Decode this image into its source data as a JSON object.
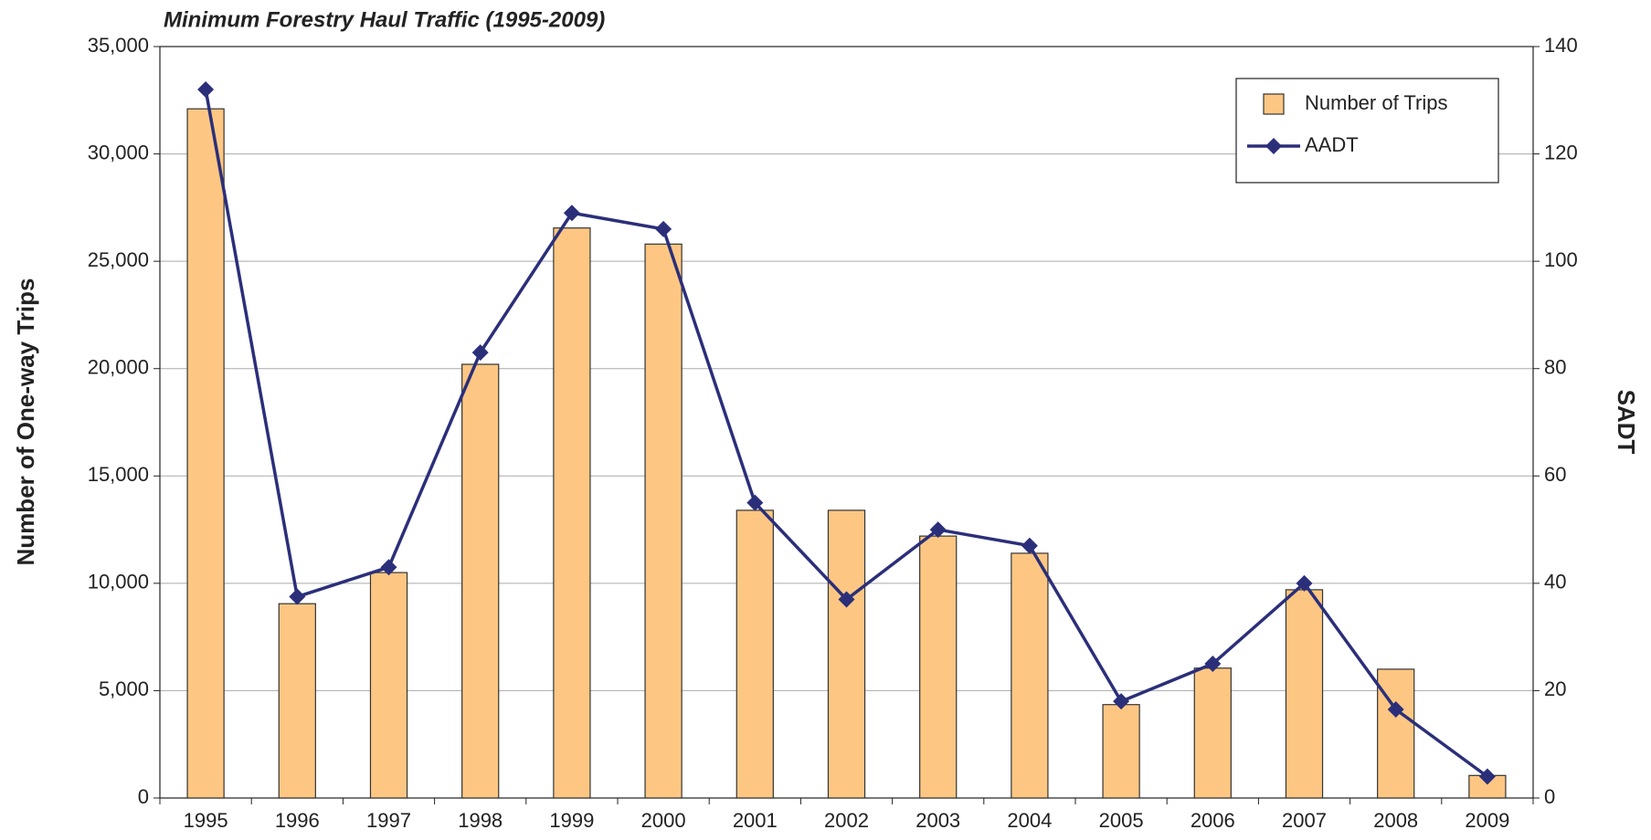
{
  "chart_data": {
    "type": "bar-line",
    "title": "Minimum Forestry Haul Traffic (1995-2009)",
    "y_label": "Number of One-way Trips",
    "y2_label": "SADT",
    "categories": [
      "1995",
      "1996",
      "1997",
      "1998",
      "1999",
      "2000",
      "2001",
      "2002",
      "2003",
      "2004",
      "2005",
      "2006",
      "2007",
      "2008",
      "2009"
    ],
    "series": [
      {
        "name": "Number of Trips",
        "type": "bar",
        "color": "#fdc783",
        "values": [
          32100,
          9050,
          10500,
          20200,
          26550,
          25800,
          13400,
          13400,
          12200,
          11400,
          4350,
          6050,
          9700,
          6000,
          1050
        ]
      },
      {
        "name": "AADT",
        "type": "line",
        "axis": "y2",
        "color": "#2b2f7a",
        "values": [
          132,
          37.5,
          43,
          83,
          109,
          106,
          55,
          37,
          50,
          47,
          18,
          25,
          40,
          16.5,
          4
        ]
      }
    ],
    "ylim": [
      0,
      35000
    ],
    "yticks": [
      0,
      {
        "value": 5000,
        "label": "5,000"
      },
      {
        "value": 10000,
        "label": "10,000"
      },
      {
        "value": 15000,
        "label": "15,000"
      },
      {
        "value": 20000,
        "label": "20,000"
      },
      {
        "value": 25000,
        "label": "25,000"
      },
      {
        "value": 30000,
        "label": "30,000"
      },
      {
        "value": 35000,
        "label": "35,000"
      }
    ],
    "y2lim": [
      0,
      140
    ],
    "y2ticks": [
      0,
      20,
      40,
      60,
      80,
      100,
      120,
      140
    ],
    "grid": true,
    "legend": "upper right"
  }
}
